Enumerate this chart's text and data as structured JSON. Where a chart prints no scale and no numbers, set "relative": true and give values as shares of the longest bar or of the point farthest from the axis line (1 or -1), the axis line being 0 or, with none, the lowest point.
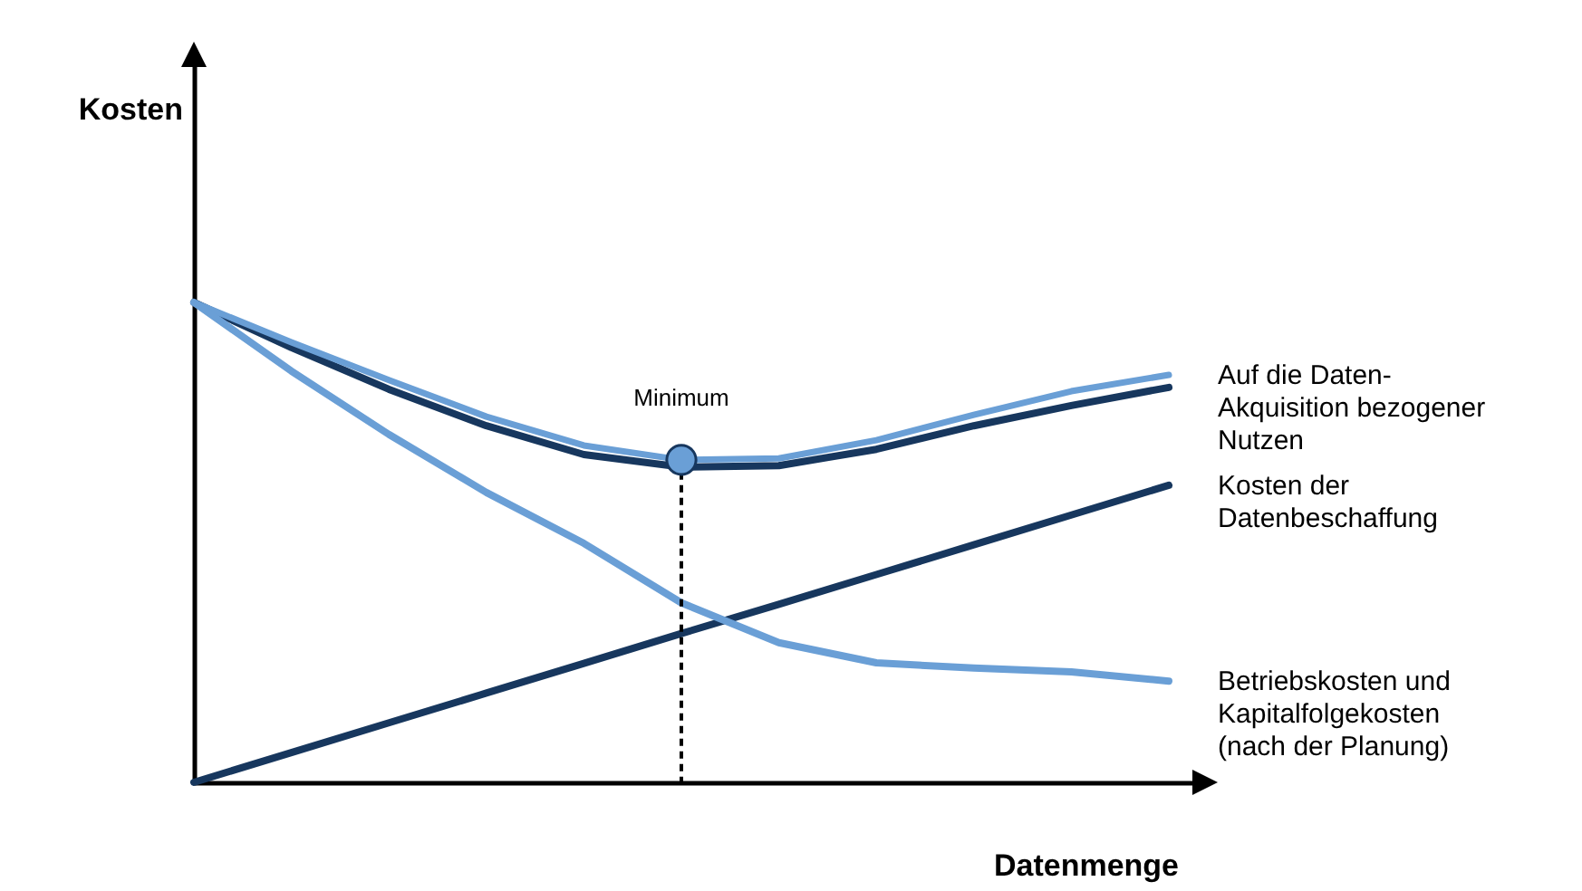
{
  "chart_data": {
    "type": "line",
    "relative": true,
    "xlabel": "Datenmenge",
    "categories": [
      null,
      null,
      null,
      null,
      null,
      null,
      null,
      null,
      null,
      null,
      null
    ],
    "series": [
      {
        "color": "#17375e",
        "values": [
          1.0,
          0.906,
          0.819,
          0.743,
          0.683,
          0.657,
          0.66,
          0.694,
          0.743,
          0.785,
          0.823
        ]
      },
      {
        "name": "Auf die Daten-Akquisition bezogener Nutzen",
        "color": "#6a9fd6",
        "values": [
          1.0,
          0.917,
          0.838,
          0.762,
          0.702,
          0.672,
          0.675,
          0.713,
          0.766,
          0.815,
          0.849
        ]
      },
      {
        "name": "Kosten der Datenbeschaffung",
        "color": "#17375e",
        "values": [
          0,
          0.062,
          0.124,
          0.186,
          0.248,
          0.31,
          0.371,
          0.433,
          0.495,
          0.557,
          0.619
        ]
      },
      {
        "name": "Betriebskosten und Kapitalfolgekosten (nach der Planung)",
        "color": "#6a9fd6",
        "values": [
          1.0,
          0.857,
          0.725,
          0.604,
          0.498,
          0.374,
          0.291,
          0.249,
          0.238,
          0.23,
          0.211
        ]
      }
    ],
    "annotations": [
      "Kosten",
      {
        "text": "Minimum",
        "y": 0.672
      }
    ],
    "grid": false,
    "marker": "none",
    "line_style": "solid"
  }
}
